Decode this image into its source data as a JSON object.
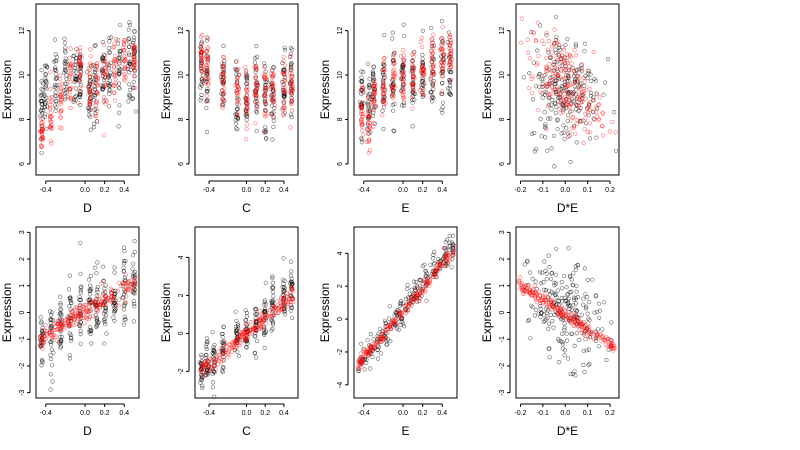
{
  "figure": {
    "background": "#ffffff",
    "description_colors": {
      "observed": "#000000",
      "fitted": "#ff0000"
    }
  },
  "chart_data": [
    {
      "type": "scatter",
      "row": 1,
      "col": 1,
      "title": "",
      "xlabel": "D",
      "ylabel": "Expression",
      "xlim": [
        -0.5,
        0.55
      ],
      "ylim": [
        5.5,
        13.2
      ],
      "xticks": [
        -0.4,
        0.0,
        0.2,
        0.4
      ],
      "xtick_labels": [
        "-0.4",
        "0.0",
        "0.2",
        "0.4"
      ],
      "yticks": [
        6,
        8,
        10,
        12
      ],
      "ytick_labels": [
        "6",
        "8",
        "10",
        "12"
      ],
      "grid": false,
      "legend": "none",
      "series": [
        {
          "color": "#000000",
          "pattern": "columns",
          "x": [
            -0.44,
            -0.4,
            -0.3,
            -0.2,
            -0.1,
            -0.05,
            0.05,
            0.1,
            0.18,
            0.25,
            0.35,
            0.45,
            0.5
          ],
          "center": [
            8.6,
            9.2,
            9.6,
            9.9,
            10.0,
            10.0,
            9.2,
            9.5,
            10.1,
            10.3,
            10.4,
            10.5,
            10.4
          ],
          "spread": 1.6
        },
        {
          "color": "#ff0000",
          "pattern": "columns",
          "x": [
            -0.44,
            -0.35,
            -0.25,
            -0.15,
            -0.05,
            0.05,
            0.12,
            0.2,
            0.3,
            0.4,
            0.5
          ],
          "center": [
            7.5,
            8.0,
            8.6,
            9.6,
            10.4,
            9.6,
            9.5,
            9.9,
            10.3,
            10.5,
            10.6
          ],
          "spread": 1.3
        }
      ]
    },
    {
      "type": "scatter",
      "row": 1,
      "col": 2,
      "title": "",
      "xlabel": "C",
      "ylabel": "Expression",
      "xlim": [
        -0.55,
        0.55
      ],
      "ylim": [
        5.5,
        13.2
      ],
      "xticks": [
        -0.4,
        0.0,
        0.2,
        0.4
      ],
      "xtick_labels": [
        "-0.4",
        "0.0",
        "0.2",
        "0.4"
      ],
      "yticks": [
        6,
        8,
        10,
        12
      ],
      "ytick_labels": [
        "6",
        "8",
        "10",
        "12"
      ],
      "grid": false,
      "legend": "none",
      "series": [
        {
          "color": "#000000",
          "pattern": "columns",
          "x": [
            -0.48,
            -0.42,
            -0.25,
            -0.1,
            0.0,
            0.1,
            0.2,
            0.28,
            0.4,
            0.48
          ],
          "center": [
            10.3,
            10.0,
            9.7,
            9.3,
            9.0,
            9.2,
            8.8,
            9.1,
            9.3,
            9.5
          ],
          "spread": 1.8
        },
        {
          "color": "#ff0000",
          "pattern": "columns",
          "x": [
            -0.48,
            -0.42,
            -0.25,
            -0.1,
            0.0,
            0.1,
            0.2,
            0.28,
            0.4,
            0.48
          ],
          "center": [
            10.8,
            10.4,
            9.8,
            9.3,
            9.0,
            9.4,
            9.1,
            9.3,
            9.5,
            9.4
          ],
          "spread": 1.2
        }
      ]
    },
    {
      "type": "scatter",
      "row": 1,
      "col": 3,
      "title": "",
      "xlabel": "E",
      "ylabel": "Expression",
      "xlim": [
        -0.5,
        0.55
      ],
      "ylim": [
        5.5,
        13.2
      ],
      "xticks": [
        -0.4,
        0.0,
        0.2,
        0.4
      ],
      "xtick_labels": [
        "-0.4",
        "0.0",
        "0.2",
        "0.4"
      ],
      "yticks": [
        6,
        8,
        10,
        12
      ],
      "ytick_labels": [
        "6",
        "8",
        "10",
        "12"
      ],
      "grid": false,
      "legend": "none",
      "series": [
        {
          "color": "#000000",
          "pattern": "columns",
          "x": [
            -0.42,
            -0.35,
            -0.3,
            -0.2,
            -0.1,
            0.0,
            0.1,
            0.2,
            0.3,
            0.4,
            0.48
          ],
          "center": [
            9.0,
            8.6,
            9.2,
            9.6,
            9.6,
            9.8,
            9.5,
            9.8,
            10.0,
            10.2,
            10.4
          ],
          "spread": 1.7
        },
        {
          "color": "#ff0000",
          "pattern": "columns",
          "x": [
            -0.42,
            -0.35,
            -0.3,
            -0.2,
            -0.1,
            0.0,
            0.1,
            0.2,
            0.3,
            0.4,
            0.48
          ],
          "center": [
            8.5,
            8.0,
            8.8,
            9.4,
            9.7,
            9.8,
            9.9,
            10.3,
            10.6,
            10.8,
            11.0
          ],
          "spread": 1.3
        }
      ]
    },
    {
      "type": "scatter",
      "row": 1,
      "col": 4,
      "title": "",
      "xlabel": "D*E",
      "ylabel": "Expression",
      "xlim": [
        -0.22,
        0.24
      ],
      "ylim": [
        5.5,
        13.2
      ],
      "xticks": [
        -0.2,
        -0.1,
        0.0,
        0.1,
        0.2
      ],
      "xtick_labels": [
        "-0.2",
        "-0.1",
        "0.0",
        "0.1",
        "0.2"
      ],
      "yticks": [
        6,
        8,
        10,
        12
      ],
      "ytick_labels": [
        "6",
        "8",
        "10",
        "12"
      ],
      "grid": false,
      "legend": "none",
      "series": [
        {
          "color": "#000000",
          "pattern": "cloud",
          "x_center": 0.0,
          "x_spread": 0.08,
          "y_center": 9.4,
          "y_spread": 1.3,
          "slope": 0
        },
        {
          "color": "#ff0000",
          "pattern": "cloud",
          "x_center": 0.0,
          "x_spread": 0.08,
          "y_center": 9.6,
          "y_spread": 0.9,
          "slope": -8
        }
      ]
    },
    {
      "type": "scatter",
      "row": 2,
      "col": 1,
      "title": "",
      "xlabel": "D",
      "ylabel": "Expression",
      "xlim": [
        -0.5,
        0.55
      ],
      "ylim": [
        -3.2,
        3.2
      ],
      "xticks": [
        -0.4,
        0.0,
        0.2,
        0.4
      ],
      "xtick_labels": [
        "-0.4",
        "0.0",
        "0.2",
        "0.4"
      ],
      "yticks": [
        -3,
        -2,
        -1,
        0,
        1,
        2,
        3
      ],
      "ytick_labels": [
        "-3",
        "-2",
        "-1",
        "0",
        "1",
        "2",
        "3"
      ],
      "grid": false,
      "legend": "none",
      "series": [
        {
          "color": "#000000",
          "pattern": "columns",
          "x": [
            -0.44,
            -0.35,
            -0.25,
            -0.15,
            -0.05,
            0.05,
            0.12,
            0.2,
            0.3,
            0.4,
            0.5
          ],
          "center": [
            -1.1,
            -0.8,
            -0.5,
            -0.1,
            0.1,
            0.0,
            0.2,
            0.4,
            0.6,
            0.9,
            1.1
          ],
          "spread": 1.4
        },
        {
          "color": "#ff0000",
          "pattern": "line",
          "x0": -0.46,
          "x1": 0.52,
          "y0": -1.0,
          "y1": 1.2,
          "spread": 0.18
        }
      ]
    },
    {
      "type": "scatter",
      "row": 2,
      "col": 2,
      "title": "",
      "xlabel": "C",
      "ylabel": "Expression",
      "xlim": [
        -0.55,
        0.55
      ],
      "ylim": [
        -3.4,
        5.6
      ],
      "xticks": [
        -0.4,
        0.0,
        0.2,
        0.4
      ],
      "xtick_labels": [
        "-0.4",
        "0.0",
        "0.2",
        "0.4"
      ],
      "yticks": [
        -2,
        0,
        2,
        4
      ],
      "ytick_labels": [
        "-2",
        "0",
        "2",
        "4"
      ],
      "grid": false,
      "legend": "none",
      "series": [
        {
          "color": "#000000",
          "pattern": "columns",
          "x": [
            -0.48,
            -0.42,
            -0.35,
            -0.25,
            -0.1,
            0.0,
            0.1,
            0.2,
            0.28,
            0.4,
            0.48
          ],
          "center": [
            -1.9,
            -1.6,
            -1.3,
            -0.9,
            -0.3,
            0.0,
            0.5,
            0.9,
            1.3,
            1.8,
            2.1
          ],
          "spread": 1.3
        },
        {
          "color": "#ff0000",
          "pattern": "line",
          "x0": -0.5,
          "x1": 0.5,
          "y0": -2.1,
          "y1": 2.1,
          "spread": 0.2
        }
      ]
    },
    {
      "type": "scatter",
      "row": 2,
      "col": 3,
      "title": "",
      "xlabel": "E",
      "ylabel": "Expression",
      "xlim": [
        -0.5,
        0.55
      ],
      "ylim": [
        -4.8,
        5.6
      ],
      "xticks": [
        -0.4,
        0.0,
        0.2,
        0.4
      ],
      "xtick_labels": [
        "-0.4",
        "0.0",
        "0.2",
        "0.4"
      ],
      "yticks": [
        -4,
        -2,
        0,
        2,
        4
      ],
      "ytick_labels": [
        "-4",
        "-2",
        "0",
        "2",
        "4"
      ],
      "grid": false,
      "legend": "none",
      "series": [
        {
          "color": "#000000",
          "pattern": "line",
          "x0": -0.46,
          "x1": 0.52,
          "y0": -3.0,
          "y1": 4.6,
          "spread": 0.45
        },
        {
          "color": "#ff0000",
          "pattern": "line",
          "x0": -0.46,
          "x1": 0.52,
          "y0": -2.8,
          "y1": 4.2,
          "spread": 0.2
        }
      ]
    },
    {
      "type": "scatter",
      "row": 2,
      "col": 4,
      "title": "",
      "xlabel": "D*E",
      "ylabel": "Expression",
      "xlim": [
        -0.22,
        0.24
      ],
      "ylim": [
        -3.2,
        3.2
      ],
      "xticks": [
        -0.2,
        -0.1,
        0.0,
        0.1,
        0.2
      ],
      "xtick_labels": [
        "-0.2",
        "-0.1",
        "0.0",
        "0.1",
        "0.2"
      ],
      "yticks": [
        -3,
        -2,
        -1,
        0,
        1,
        2,
        3
      ],
      "ytick_labels": [
        "-3",
        "-2",
        "-1",
        "0",
        "1",
        "2",
        "3"
      ],
      "grid": false,
      "legend": "none",
      "series": [
        {
          "color": "#000000",
          "pattern": "cloud",
          "x_center": 0.0,
          "x_spread": 0.08,
          "y_center": 0.0,
          "y_spread": 0.9,
          "slope": -4
        },
        {
          "color": "#ff0000",
          "pattern": "line",
          "x0": -0.21,
          "x1": 0.22,
          "y0": 1.1,
          "y1": -1.3,
          "spread": 0.12
        }
      ]
    }
  ]
}
